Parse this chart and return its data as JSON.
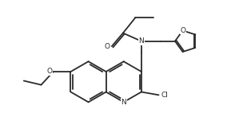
{
  "bg_color": "#ffffff",
  "line_color": "#2a2a2a",
  "line_width": 1.3,
  "figsize": [
    2.84,
    1.57
  ],
  "dpi": 100,
  "xlim": [
    -0.5,
    10.5
  ],
  "ylim": [
    -0.3,
    5.8
  ],
  "bl": 1.0
}
